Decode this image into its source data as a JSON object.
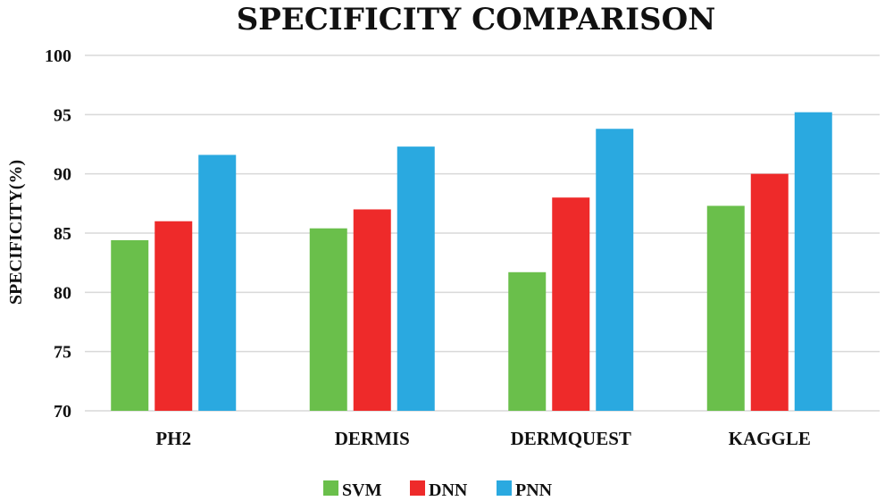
{
  "chart_data": {
    "type": "bar",
    "title": "SPECIFICITY COMPARISON",
    "xlabel": "",
    "ylabel": "SPECIFICITY(%)",
    "ylim": [
      70,
      100
    ],
    "yticks": [
      "70",
      "75",
      "80",
      "85",
      "90",
      "95",
      "100"
    ],
    "grid": true,
    "legend_position": "bottom",
    "categories": [
      "PH2",
      "DERMIS",
      "DERMQUEST",
      "KAGGLE"
    ],
    "series": [
      {
        "name": "SVM",
        "color": "#6abf4b",
        "values": [
          84.4,
          85.4,
          81.7,
          87.3
        ]
      },
      {
        "name": "DNN",
        "color": "#ee2a2a",
        "values": [
          86.0,
          87.0,
          88.0,
          90.0
        ]
      },
      {
        "name": "PNN",
        "color": "#2aa9e0",
        "values": [
          91.6,
          92.3,
          93.8,
          95.2
        ]
      }
    ]
  }
}
